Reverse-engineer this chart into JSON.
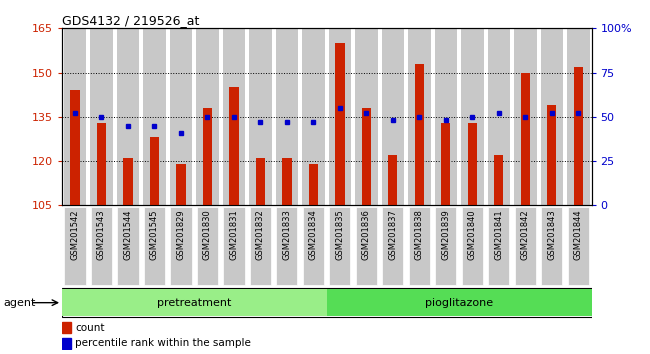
{
  "title": "GDS4132 / 219526_at",
  "categories": [
    "GSM201542",
    "GSM201543",
    "GSM201544",
    "GSM201545",
    "GSM201829",
    "GSM201830",
    "GSM201831",
    "GSM201832",
    "GSM201833",
    "GSM201834",
    "GSM201835",
    "GSM201836",
    "GSM201837",
    "GSM201838",
    "GSM201839",
    "GSM201840",
    "GSM201841",
    "GSM201842",
    "GSM201843",
    "GSM201844"
  ],
  "count_values": [
    144,
    133,
    121,
    128,
    119,
    138,
    145,
    121,
    121,
    119,
    160,
    138,
    122,
    153,
    133,
    133,
    122,
    150,
    139,
    152
  ],
  "percentile_values": [
    52,
    50,
    45,
    45,
    41,
    50,
    50,
    47,
    47,
    47,
    55,
    52,
    48,
    50,
    48,
    50,
    52,
    50,
    52,
    52
  ],
  "ylim_left": [
    105,
    165
  ],
  "ylim_right": [
    0,
    100
  ],
  "yticks_left": [
    105,
    120,
    135,
    150,
    165
  ],
  "yticks_right": [
    0,
    25,
    50,
    75,
    100
  ],
  "bar_color": "#cc2200",
  "dot_color": "#0000cc",
  "background_bar": "#c8c8c8",
  "pretreatment_color": "#99ee88",
  "pioglitazone_color": "#55dd55",
  "pretreatment_label": "pretreatment",
  "pioglitazone_label": "pioglitazone",
  "agent_label": "agent",
  "legend_count": "count",
  "legend_percentile": "percentile rank within the sample",
  "pretreatment_indices": [
    0,
    1,
    2,
    3,
    4,
    5,
    6,
    7,
    8,
    9
  ],
  "pioglitazone_indices": [
    10,
    11,
    12,
    13,
    14,
    15,
    16,
    17,
    18,
    19
  ],
  "bar_width": 0.85,
  "red_bar_width": 0.35,
  "base_value": 105
}
